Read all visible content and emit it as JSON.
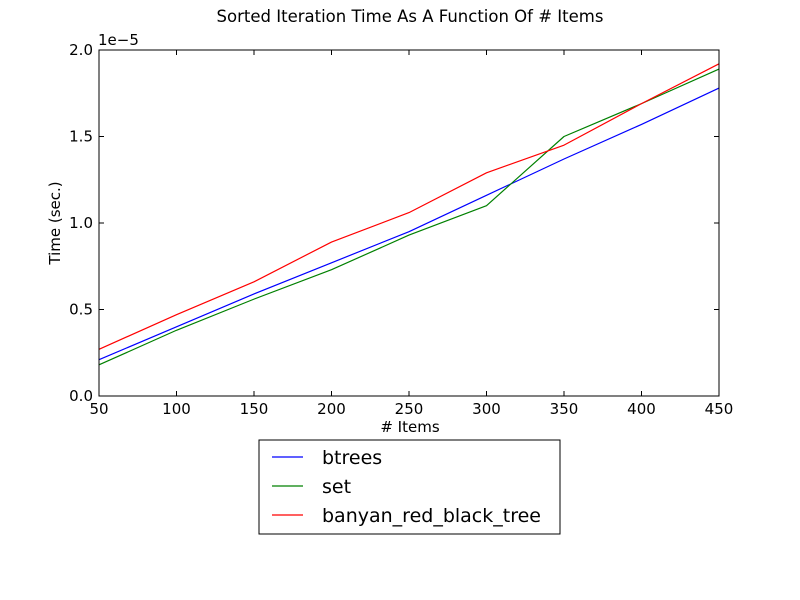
{
  "chart_data": {
    "type": "line",
    "title": "Sorted Iteration Time As A Function Of # Items",
    "xlabel": "# Items",
    "ylabel": "Time (sec.)",
    "y_scale_label": "1e−5",
    "y_scale_factor": 1e-05,
    "xlim": [
      50,
      450
    ],
    "ylim": [
      0.0,
      2.0
    ],
    "x_ticks": [
      50,
      100,
      150,
      200,
      250,
      300,
      350,
      400,
      450
    ],
    "y_ticks": [
      "0.0",
      "0.5",
      "1.0",
      "1.5",
      "2.0"
    ],
    "grid": false,
    "legend_position": "below",
    "x": [
      50,
      100,
      150,
      200,
      250,
      300,
      350,
      400,
      450
    ],
    "series": [
      {
        "name": "btrees",
        "color": "#0000ff",
        "values": [
          0.21,
          0.4,
          0.59,
          0.77,
          0.95,
          1.16,
          1.37,
          1.57,
          1.78
        ]
      },
      {
        "name": "set",
        "color": "#008000",
        "values": [
          0.18,
          0.38,
          0.56,
          0.73,
          0.93,
          1.1,
          1.5,
          1.69,
          1.89
        ]
      },
      {
        "name": "banyan_red_black_tree",
        "color": "#ff0000",
        "values": [
          0.27,
          0.47,
          0.66,
          0.89,
          1.06,
          1.29,
          1.45,
          1.69,
          1.92
        ]
      }
    ]
  }
}
